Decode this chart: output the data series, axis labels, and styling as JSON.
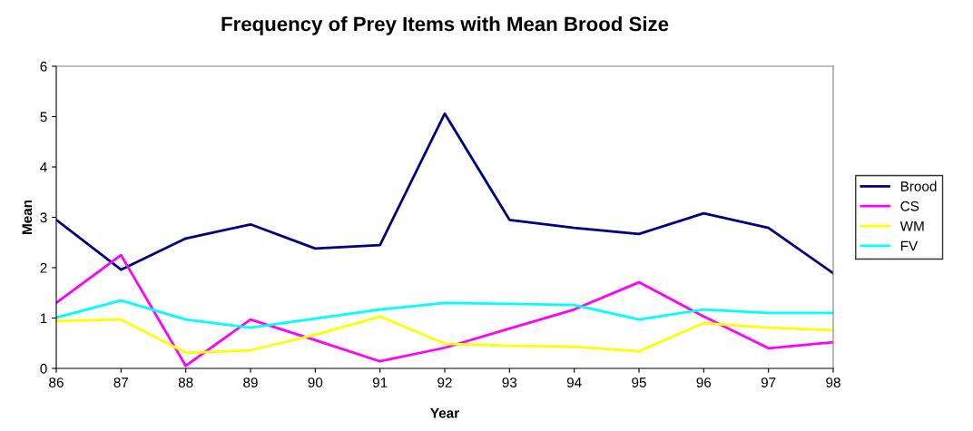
{
  "chart_data": {
    "type": "line",
    "title": "Frequency of Prey Items with Mean Brood Size",
    "xlabel": "Year",
    "ylabel": "Mean",
    "categories": [
      "86",
      "87",
      "88",
      "89",
      "90",
      "91",
      "92",
      "93",
      "94",
      "95",
      "96",
      "97",
      "98"
    ],
    "series": [
      {
        "name": "Brood",
        "color": "#000080",
        "values": [
          2.95,
          1.96,
          2.58,
          2.86,
          2.38,
          2.45,
          5.06,
          2.95,
          2.79,
          2.67,
          3.08,
          2.79,
          1.89
        ]
      },
      {
        "name": "CS",
        "color": "#ff00ff",
        "values": [
          1.3,
          2.25,
          0.05,
          0.97,
          0.56,
          0.14,
          0.41,
          0.79,
          1.17,
          1.71,
          1.03,
          0.4,
          0.52
        ]
      },
      {
        "name": "WM",
        "color": "#ffff00",
        "values": [
          0.94,
          0.97,
          0.31,
          0.36,
          0.67,
          1.03,
          0.49,
          0.45,
          0.43,
          0.34,
          0.9,
          0.81,
          0.76
        ]
      },
      {
        "name": "FV",
        "color": "#00ffff",
        "values": [
          1.01,
          1.35,
          0.97,
          0.81,
          0.99,
          1.17,
          1.3,
          1.28,
          1.26,
          0.97,
          1.17,
          1.1,
          1.1
        ]
      }
    ],
    "ylim": [
      0,
      6
    ],
    "yticks": [
      0,
      1,
      2,
      3,
      4,
      5,
      6
    ],
    "grid": false,
    "legend": "right",
    "marker": "none",
    "line_style": "solid"
  }
}
